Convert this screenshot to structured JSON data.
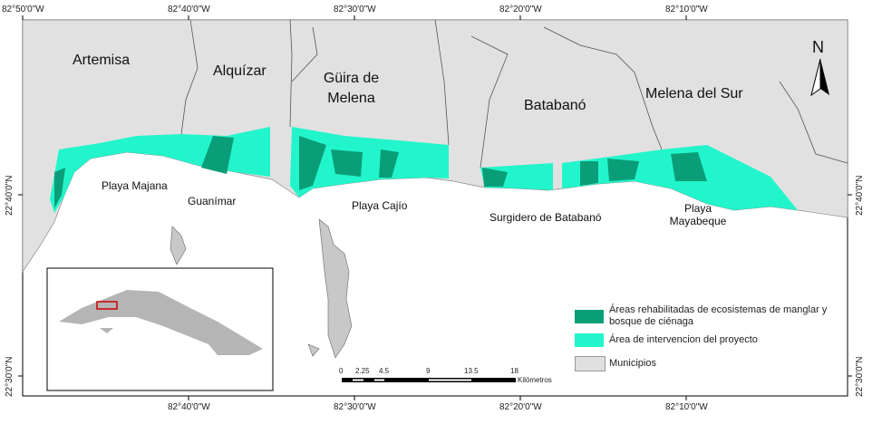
{
  "coords": {
    "top": [
      "82°50'0\"W",
      "82°40'0\"W",
      "82°30'0\"W",
      "82°20'0\"W",
      "82°10'0\"W"
    ],
    "bottom": [
      "82°40'0\"W",
      "82°30'0\"W",
      "82°20'0\"W",
      "82°10'0\"W"
    ],
    "left": [
      "22°40'0\"N",
      "22°30'0\"N"
    ],
    "right": [
      "22°40'0\"N",
      "22°30'0\"N"
    ]
  },
  "municipalities": [
    "Artemisa",
    "Alquízar",
    "Güira de Melena",
    "Batabanó",
    "Melena del Sur"
  ],
  "places": [
    "Playa Majana",
    "Guanímar",
    "Playa Cajío",
    "Surgidero de Batabanó",
    "Playa Mayabeque"
  ],
  "north": "N",
  "legend": [
    {
      "label": "Áreas rehabilitadas de ecosistemas de manglar y bosque de ciénaga",
      "color": "#0a9e78"
    },
    {
      "label": "Área de intervencion del proyecto",
      "color": "#22f5cb"
    },
    {
      "label": "Municipios",
      "color": "#e0e0e0"
    }
  ],
  "scale": {
    "ticks": [
      "0",
      "2.25",
      "4.5",
      "9",
      "13.5",
      "18"
    ],
    "unit": "Kilómetros"
  },
  "colors": {
    "land": "#e1e1e1",
    "sea": "#ffffff",
    "dark_green": "#0a9e78",
    "light_green": "#22f5cb"
  }
}
